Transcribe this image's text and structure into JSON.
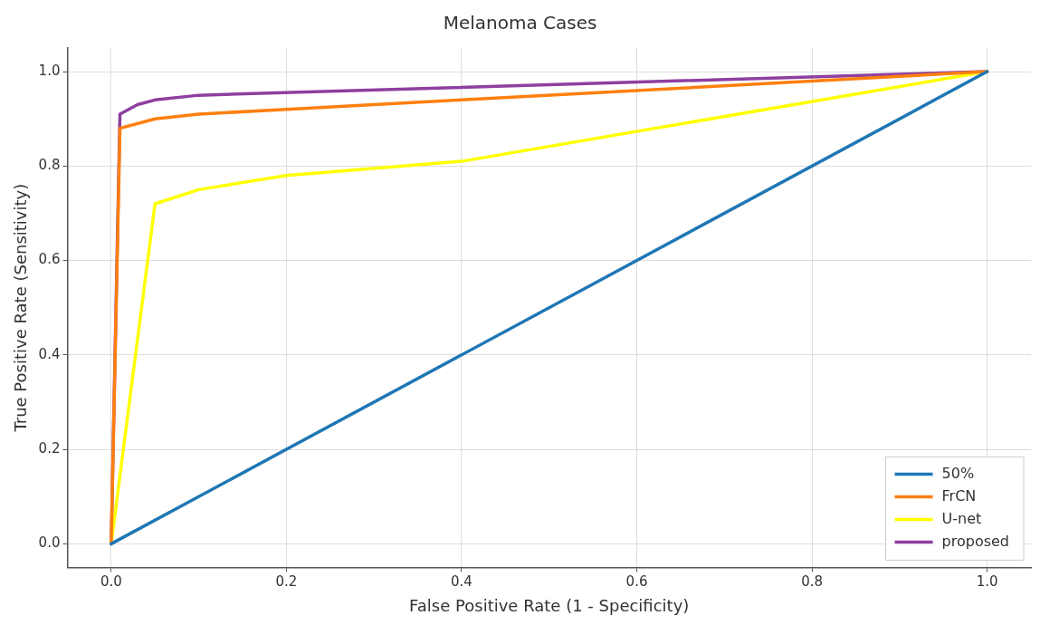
{
  "chart_data": {
    "type": "line",
    "title": "Melanoma Cases",
    "xlabel": "False Positive Rate (1 - Specificity)",
    "ylabel": "True Positive Rate (Sensitivity)",
    "series": [
      {
        "name": "50%",
        "color": "#1f77b4",
        "x": [
          0,
          1
        ],
        "values": [
          0,
          1
        ]
      },
      {
        "name": "FrCN",
        "color": "#ff7f0e",
        "x": [
          0,
          0.01,
          0.05,
          0.1,
          0.2,
          0.4,
          1
        ],
        "values": [
          0,
          0.88,
          0.9,
          0.91,
          0.92,
          0.94,
          1
        ]
      },
      {
        "name": "U-net",
        "color": "#ffff00",
        "x": [
          0,
          0.05,
          0.1,
          0.2,
          0.4,
          1
        ],
        "values": [
          0,
          0.72,
          0.75,
          0.78,
          0.81,
          1
        ]
      },
      {
        "name": "proposed",
        "color": "#8e3fa0",
        "x": [
          0,
          0.01,
          0.03,
          0.05,
          0.1,
          1
        ],
        "values": [
          0,
          0.91,
          0.93,
          0.94,
          0.95,
          1
        ]
      }
    ],
    "xlim": [
      -0.05,
      1.05
    ],
    "ylim": [
      -0.05,
      1.05
    ],
    "xticks": [
      {
        "value": 0,
        "label": "0.0"
      },
      0.2,
      0.4,
      0.6,
      0.8,
      {
        "value": 1,
        "label": "1.0"
      }
    ],
    "yticks": [
      {
        "value": 0,
        "label": "0.0"
      },
      0.2,
      0.4,
      0.6,
      0.8,
      {
        "value": 1,
        "label": "1.0"
      }
    ],
    "grid": true,
    "legend": "bottom right",
    "marker": "none",
    "line_style": "solid"
  }
}
